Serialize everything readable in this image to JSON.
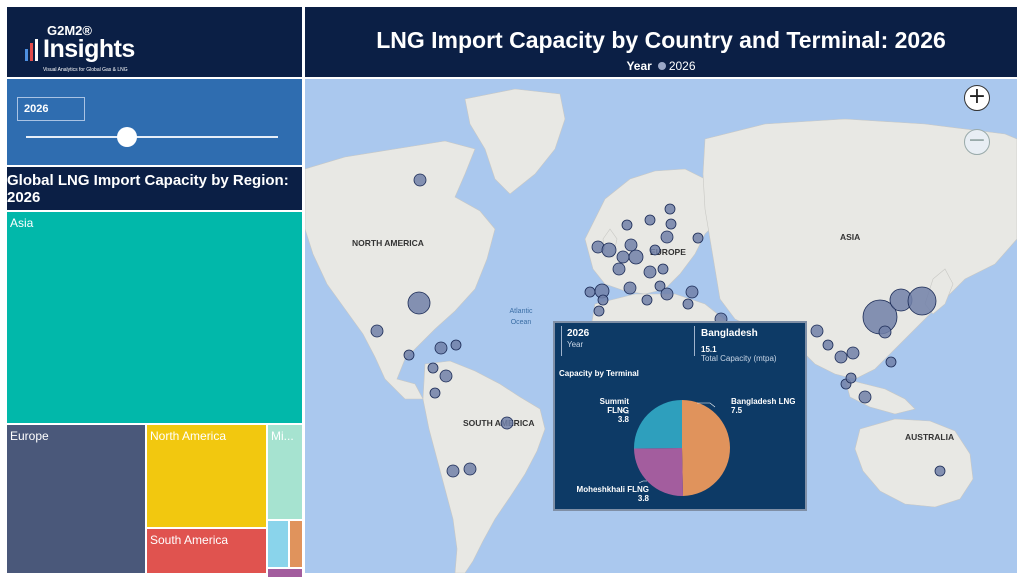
{
  "brand": {
    "small": "G2M2®",
    "big": "Insights",
    "tagline": "Visual Analytics for Global Gas & LNG"
  },
  "slider": {
    "value": "2026",
    "position_fraction": 0.4
  },
  "treemap": {
    "title": "Global LNG Import Capacity by Region: 2026",
    "regions": [
      {
        "name": "Asia",
        "color": "#01b8aa"
      },
      {
        "name": "Europe",
        "color": "#374649"
      },
      {
        "name": "North America",
        "color": "#f2c80f"
      },
      {
        "name": "Mi...",
        "color": "#a6e3d0"
      },
      {
        "name": "South America",
        "color": "#fd625e"
      }
    ]
  },
  "map": {
    "title": "LNG Import Capacity by Country and Terminal: 2026",
    "legend_label": "Year",
    "legend_value": "2026",
    "labels": {
      "north_america": "NORTH AMERICA",
      "europe": "EUROPE",
      "asia": "ASIA",
      "atlantic": "Atlantic",
      "ocean": "Ocean",
      "south_america": "SOUTH AMERICA",
      "australia": "AUSTRALIA"
    },
    "zoom_in": "+",
    "zoom_out": "−"
  },
  "tooltip": {
    "year": "2026",
    "year_label": "Year",
    "country": "Bangladesh",
    "total": "15.1",
    "total_label": "Total Capacity (mtpa)",
    "pie_title": "Capacity by Terminal",
    "slices": [
      {
        "name": "Bangladesh LNG",
        "value": 7.5,
        "value_label": "7.5",
        "color": "#e0935c"
      },
      {
        "name": "Moheshkhali FLNG",
        "value": 3.8,
        "value_label": "3.8",
        "color": "#a35d9e"
      },
      {
        "name": "Summit FLNG",
        "value": 3.8,
        "value_label": "3.8",
        "color": "#2e9fbd"
      }
    ]
  }
}
